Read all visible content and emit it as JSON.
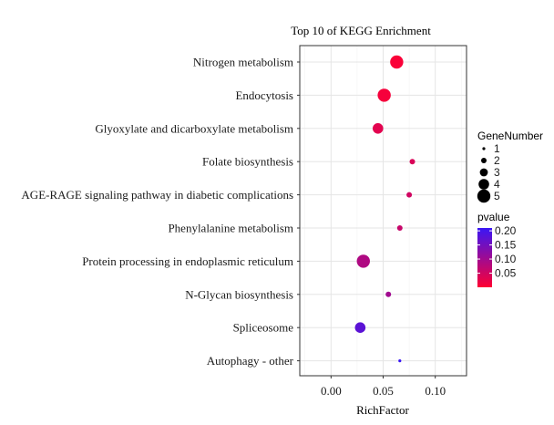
{
  "chart_data": {
    "type": "scatter",
    "title": "Top 10 of KEGG Enrichment",
    "xlabel": "RichFactor",
    "ylabel": "",
    "xlim": [
      -0.03,
      0.13
    ],
    "xticks": [
      0.0,
      0.05,
      0.1
    ],
    "xtick_labels": [
      "0.00",
      "0.05",
      "0.10"
    ],
    "grid": true,
    "categories": [
      "Nitrogen metabolism",
      "Endocytosis",
      "Glyoxylate and dicarboxylate metabolism",
      "Folate biosynthesis",
      "AGE-RAGE signaling pathway in diabetic complications",
      "Phenylalanine metabolism",
      "Protein processing in endoplasmic reticulum",
      "N-Glycan biosynthesis",
      "Spliceosome",
      "Autophagy - other"
    ],
    "points": [
      {
        "term": "Nitrogen metabolism",
        "rich_factor": 0.063,
        "gene_number": 5,
        "pvalue": 0.005
      },
      {
        "term": "Endocytosis",
        "rich_factor": 0.051,
        "gene_number": 5,
        "pvalue": 0.01
      },
      {
        "term": "Glyoxylate and dicarboxylate metabolism",
        "rich_factor": 0.045,
        "gene_number": 4,
        "pvalue": 0.03
      },
      {
        "term": "Folate biosynthesis",
        "rich_factor": 0.078,
        "gene_number": 2,
        "pvalue": 0.04
      },
      {
        "term": "AGE-RAGE signaling pathway in diabetic complications",
        "rich_factor": 0.075,
        "gene_number": 2,
        "pvalue": 0.05
      },
      {
        "term": "Phenylalanine metabolism",
        "rich_factor": 0.066,
        "gene_number": 2,
        "pvalue": 0.06
      },
      {
        "term": "Protein processing in endoplasmic reticulum",
        "rich_factor": 0.031,
        "gene_number": 5,
        "pvalue": 0.085
      },
      {
        "term": "N-Glycan biosynthesis",
        "rich_factor": 0.055,
        "gene_number": 2,
        "pvalue": 0.1
      },
      {
        "term": "Spliceosome",
        "rich_factor": 0.028,
        "gene_number": 4,
        "pvalue": 0.175
      },
      {
        "term": "Autophagy - other",
        "rich_factor": 0.066,
        "gene_number": 1,
        "pvalue": 0.21
      }
    ],
    "legend_size": {
      "title": "GeneNumber",
      "values": [
        1,
        2,
        3,
        4,
        5
      ],
      "labels": [
        "1",
        "2",
        "3",
        "4",
        "5"
      ]
    },
    "legend_color": {
      "title": "pvalue",
      "min": 0.0,
      "max": 0.21,
      "ticks": [
        0.2,
        0.15,
        0.1,
        0.05
      ],
      "labels": [
        "0.20",
        "0.15",
        "0.10",
        "0.05"
      ],
      "low_color": "#ff0033",
      "high_color": "#3a16f5"
    },
    "colors": {
      "panel_border": "#333333",
      "grid_major": "#e5e5e5",
      "grid_minor": "#f2f2f2",
      "text": "#1a1a1a",
      "point_default": "#000000"
    }
  }
}
